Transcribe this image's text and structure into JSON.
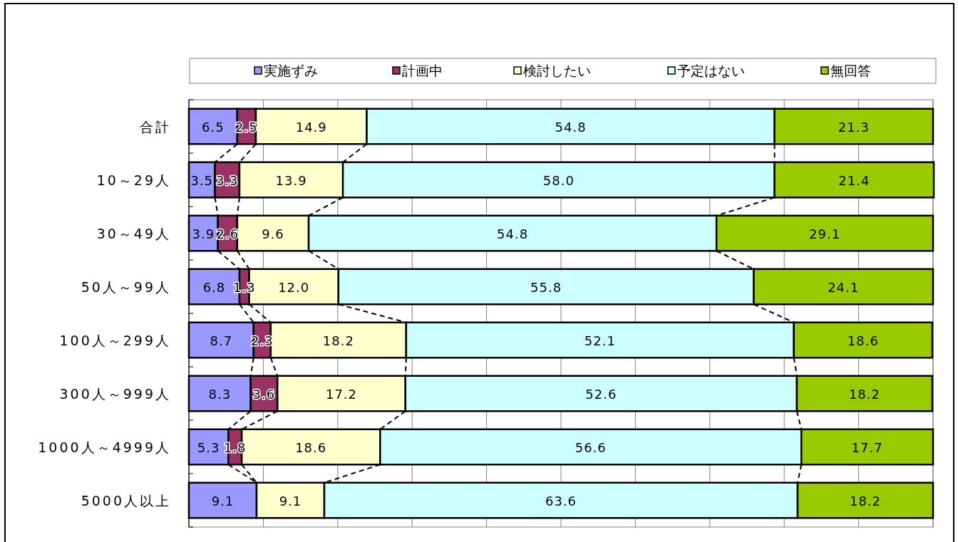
{
  "chart_data": {
    "type": "bar",
    "orientation": "horizontal",
    "stacked": true,
    "categories": [
      "合計",
      "10～29人",
      "30～49人",
      "50人～99人",
      "100人～299人",
      "300人～999人",
      "1000人～4999人",
      "5000人以上"
    ],
    "series": [
      {
        "name": "実施ずみ",
        "color": "#9999ff",
        "values": [
          6.5,
          3.5,
          3.9,
          6.8,
          8.7,
          8.3,
          5.3,
          9.1
        ],
        "value_labels": [
          "6.5",
          "3.5",
          "3.9",
          "6.8",
          "8.7",
          "8.3",
          "5.3",
          "9.1"
        ]
      },
      {
        "name": "計画中",
        "color": "#993366",
        "values": [
          2.5,
          3.3,
          2.6,
          1.3,
          2.3,
          3.6,
          1.8,
          0
        ],
        "value_labels": [
          "2.5",
          "3.3",
          "2.6",
          "1.3",
          "2.3",
          "3.6",
          "1.8",
          null
        ]
      },
      {
        "name": "検討したい",
        "color": "#ffffcc",
        "values": [
          14.9,
          13.9,
          9.6,
          12.0,
          18.2,
          17.2,
          18.6,
          9.1
        ],
        "value_labels": [
          "14.9",
          "13.9",
          "9.6",
          "12.0",
          "18.2",
          "17.2",
          "18.6",
          "9.1"
        ]
      },
      {
        "name": "予定はない",
        "color": "#ccffff",
        "values": [
          54.8,
          58.0,
          54.8,
          55.8,
          52.1,
          52.6,
          56.6,
          63.6
        ],
        "value_labels": [
          "54.8",
          "58.0",
          "54.8",
          "55.8",
          "52.1",
          "52.6",
          "56.6",
          "63.6"
        ]
      },
      {
        "name": "無回答",
        "color": "#99cc00",
        "values": [
          21.3,
          21.4,
          29.1,
          24.1,
          18.6,
          18.2,
          17.7,
          18.2
        ],
        "value_labels": [
          "21.3",
          "21.4",
          "29.1",
          "24.1",
          "18.6",
          "18.2",
          "17.7",
          "18.2"
        ]
      }
    ],
    "xlim": [
      0,
      100
    ],
    "xticks": [
      {
        "value": 0,
        "label": null
      },
      {
        "value": 10,
        "label": null
      },
      {
        "value": 20,
        "label": null
      },
      {
        "value": 30,
        "label": null
      },
      {
        "value": 40,
        "label": null
      },
      {
        "value": 50,
        "label": null
      },
      {
        "value": 60,
        "label": null
      },
      {
        "value": 70,
        "label": null
      },
      {
        "value": 80,
        "label": null
      },
      {
        "value": 90,
        "label": null
      },
      {
        "value": 100,
        "label": null
      }
    ],
    "grid": "x",
    "legend": "top",
    "tick_labels": "y"
  }
}
